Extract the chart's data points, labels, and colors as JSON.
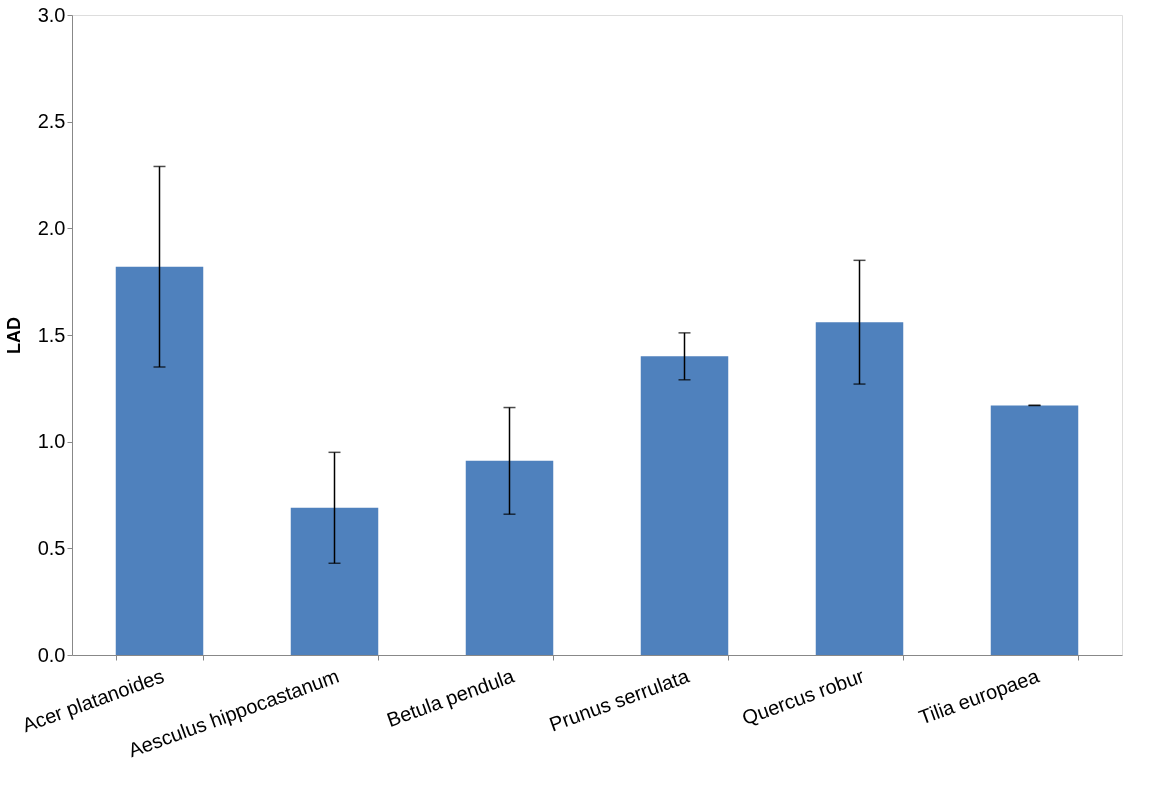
{
  "chart_data": {
    "type": "bar",
    "ylabel": "LAD",
    "categories": [
      "Acer platanoides",
      "Aesculus hippocastanum",
      "Betula pendula",
      "Prunus serrulata",
      "Quercus robur",
      "Tilia europaea"
    ],
    "values": [
      1.82,
      0.69,
      0.91,
      1.4,
      1.56,
      1.17
    ],
    "errors": [
      0.47,
      0.26,
      0.25,
      0.11,
      0.29,
      0
    ],
    "color": "#4f81bd",
    "ylim": [
      0,
      3.0
    ],
    "yticks": [
      {
        "value": 0,
        "label": "0.0"
      },
      {
        "value": 0.5,
        "label": "0.5"
      },
      {
        "value": 1,
        "label": "1.0"
      },
      {
        "value": 1.5,
        "label": "1.5"
      },
      {
        "value": 2,
        "label": "2.0"
      },
      {
        "value": 2.5,
        "label": "2.5"
      },
      {
        "value": 3,
        "label": "3.0"
      }
    ],
    "grid": false
  }
}
